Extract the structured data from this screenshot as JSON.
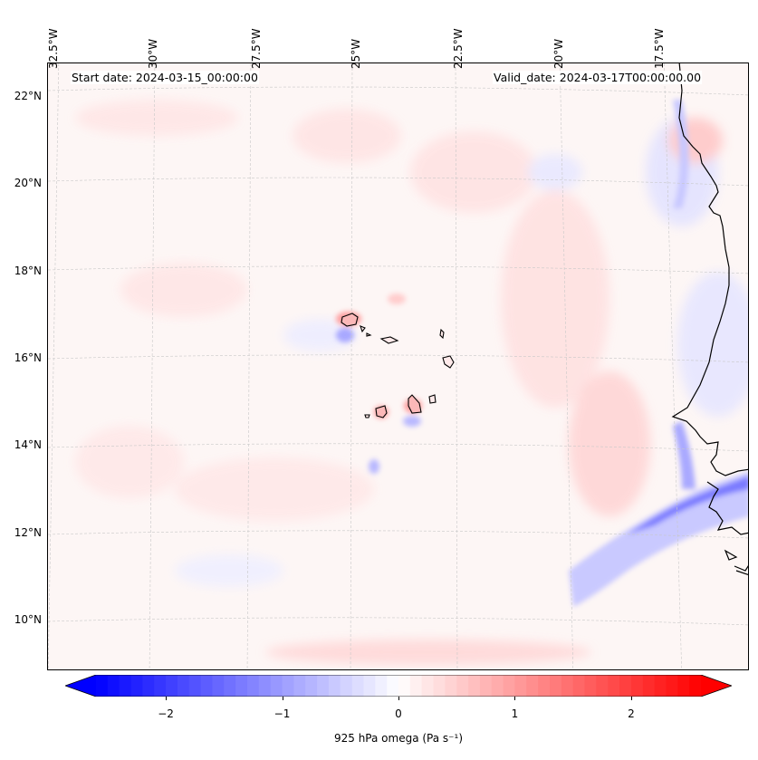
{
  "map": {
    "start_date_text": "Start date: 2024-03-15_00:00:00",
    "valid_date_text": "Valid_date: 2024-03-17T00:00:00.00",
    "lon_labels": [
      "32.5°W",
      "30°W",
      "27.5°W",
      "25°W",
      "22.5°W",
      "20°W",
      "17.5°W"
    ],
    "lat_labels": [
      "22°N",
      "20°N",
      "18°N",
      "16°N",
      "14°N",
      "12°N",
      "10°N"
    ],
    "colors": {
      "coast": "#000000",
      "land_fill": "#fbb8b8",
      "neg_strong": "#5a5aff",
      "neg_light": "#dedeff",
      "pos_light": "#ffe6e6",
      "pos_strong": "#ff9a9a"
    }
  },
  "colorbar": {
    "label": "925 hPa omega (Pa s⁻¹)",
    "tick_labels": [
      "−2",
      "−1",
      "0",
      "1",
      "2"
    ],
    "ticks": [
      -2,
      -1,
      0,
      1,
      2
    ],
    "vmin": -2.6,
    "vmax": 2.6,
    "colormap": "bwr"
  }
}
